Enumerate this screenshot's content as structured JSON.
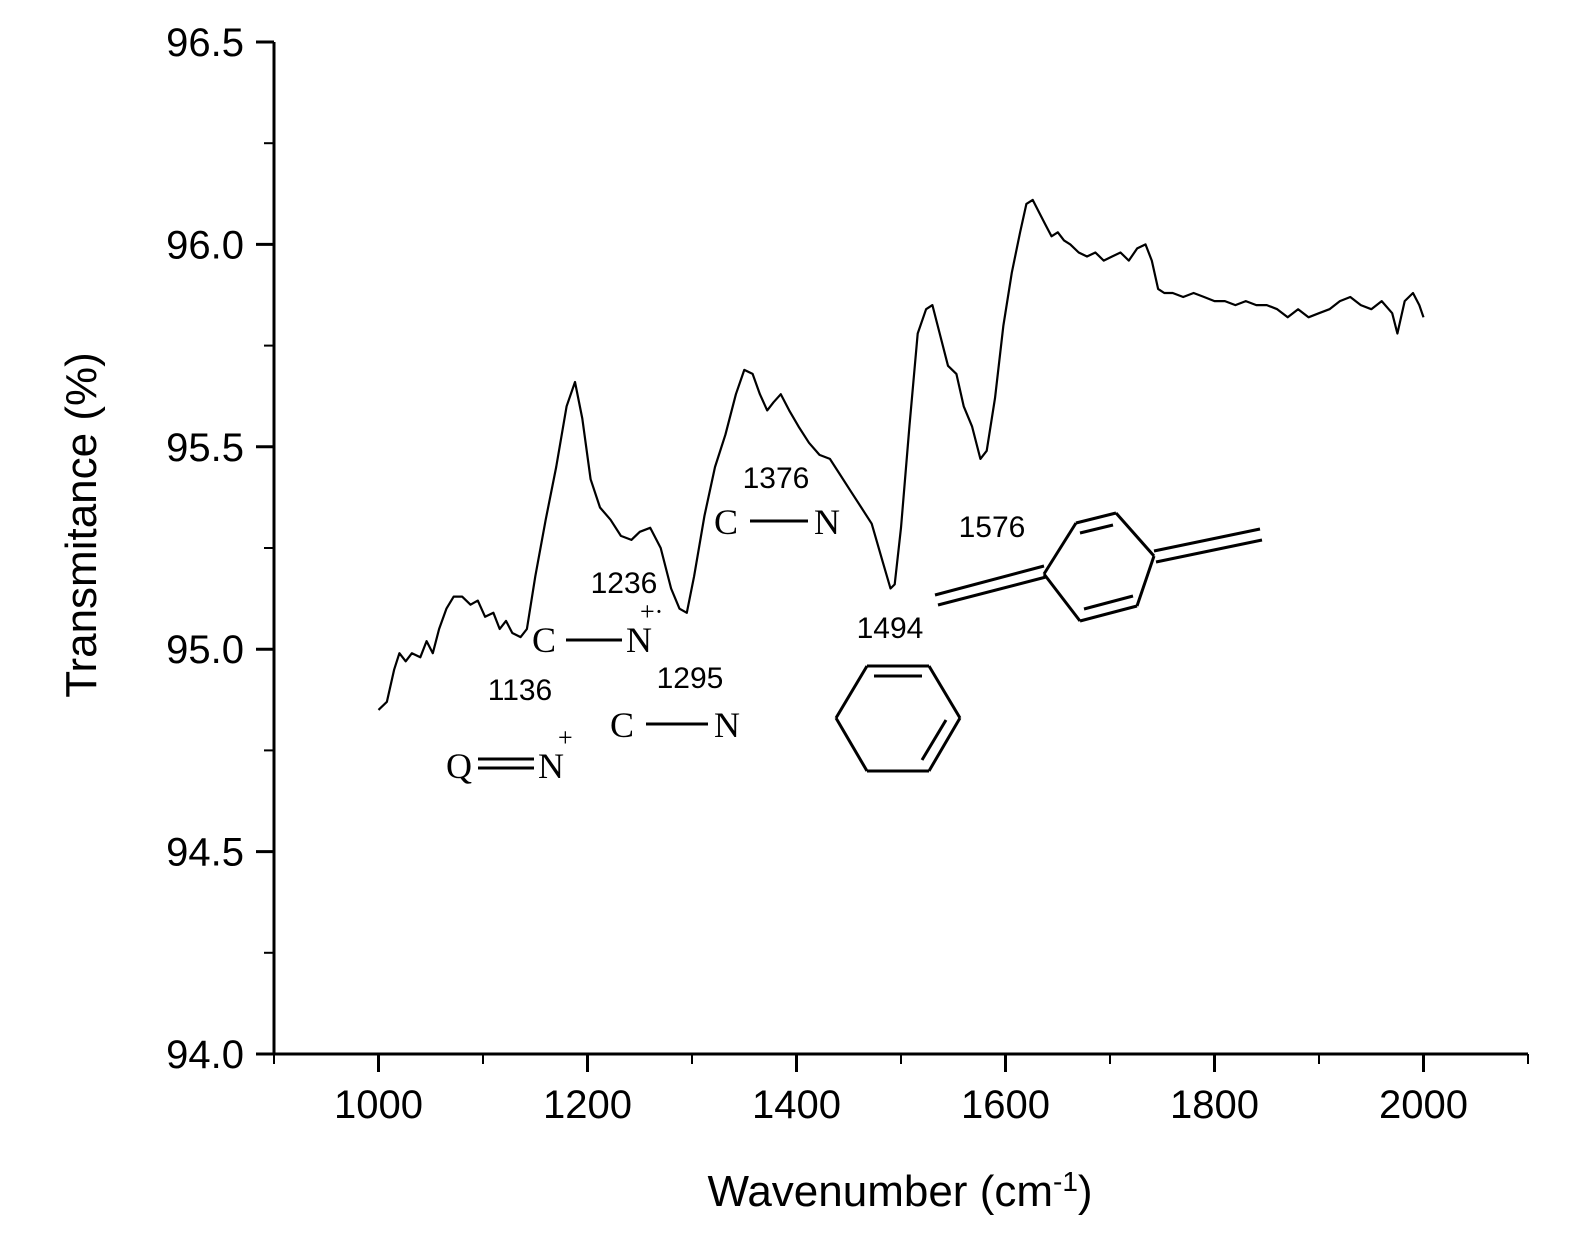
{
  "chart_data": {
    "type": "line",
    "xlabel_main": "Wavenumber (cm",
    "xlabel_sup": "-1",
    "xlabel_close": ")",
    "ylabel": "Transmitance (%)",
    "xlim": [
      900,
      2100
    ],
    "ylim": [
      94.0,
      96.5
    ],
    "x_ticks": [
      1000,
      1200,
      1400,
      1600,
      1800,
      2000
    ],
    "x_tick_labels": [
      "1000",
      "1200",
      "1400",
      "1600",
      "1800",
      "2000"
    ],
    "y_ticks": [
      94.0,
      94.5,
      95.0,
      95.5,
      96.0,
      96.5
    ],
    "y_tick_labels": [
      "94.0",
      "94.5",
      "95.0",
      "95.5",
      "96.0",
      "96.5"
    ],
    "grid": false,
    "series": [
      {
        "points": [
          [
            1000,
            94.85
          ],
          [
            1008,
            94.87
          ],
          [
            1015,
            94.95
          ],
          [
            1020,
            94.99
          ],
          [
            1026,
            94.97
          ],
          [
            1032,
            94.99
          ],
          [
            1040,
            94.98
          ],
          [
            1046,
            95.02
          ],
          [
            1052,
            94.99
          ],
          [
            1058,
            95.05
          ],
          [
            1065,
            95.1
          ],
          [
            1072,
            95.13
          ],
          [
            1080,
            95.13
          ],
          [
            1088,
            95.11
          ],
          [
            1095,
            95.12
          ],
          [
            1102,
            95.08
          ],
          [
            1110,
            95.09
          ],
          [
            1116,
            95.05
          ],
          [
            1122,
            95.07
          ],
          [
            1128,
            95.04
          ],
          [
            1136,
            95.03
          ],
          [
            1142,
            95.05
          ],
          [
            1150,
            95.18
          ],
          [
            1160,
            95.32
          ],
          [
            1170,
            95.45
          ],
          [
            1180,
            95.6
          ],
          [
            1188,
            95.66
          ],
          [
            1195,
            95.57
          ],
          [
            1203,
            95.42
          ],
          [
            1212,
            95.35
          ],
          [
            1222,
            95.32
          ],
          [
            1232,
            95.28
          ],
          [
            1242,
            95.27
          ],
          [
            1250,
            95.29
          ],
          [
            1260,
            95.3
          ],
          [
            1270,
            95.25
          ],
          [
            1280,
            95.15
          ],
          [
            1288,
            95.1
          ],
          [
            1295,
            95.09
          ],
          [
            1302,
            95.18
          ],
          [
            1312,
            95.33
          ],
          [
            1322,
            95.45
          ],
          [
            1332,
            95.53
          ],
          [
            1342,
            95.63
          ],
          [
            1350,
            95.69
          ],
          [
            1358,
            95.68
          ],
          [
            1365,
            95.63
          ],
          [
            1372,
            95.59
          ],
          [
            1378,
            95.61
          ],
          [
            1385,
            95.63
          ],
          [
            1393,
            95.59
          ],
          [
            1402,
            95.55
          ],
          [
            1412,
            95.51
          ],
          [
            1422,
            95.48
          ],
          [
            1432,
            95.47
          ],
          [
            1442,
            95.43
          ],
          [
            1452,
            95.39
          ],
          [
            1462,
            95.35
          ],
          [
            1472,
            95.31
          ],
          [
            1482,
            95.22
          ],
          [
            1490,
            95.15
          ],
          [
            1494,
            95.16
          ],
          [
            1500,
            95.3
          ],
          [
            1508,
            95.55
          ],
          [
            1516,
            95.78
          ],
          [
            1524,
            95.84
          ],
          [
            1530,
            95.85
          ],
          [
            1537,
            95.78
          ],
          [
            1545,
            95.7
          ],
          [
            1553,
            95.68
          ],
          [
            1560,
            95.6
          ],
          [
            1568,
            95.55
          ],
          [
            1576,
            95.47
          ],
          [
            1582,
            95.49
          ],
          [
            1590,
            95.62
          ],
          [
            1598,
            95.8
          ],
          [
            1606,
            95.93
          ],
          [
            1614,
            96.03
          ],
          [
            1620,
            96.1
          ],
          [
            1626,
            96.11
          ],
          [
            1632,
            96.08
          ],
          [
            1638,
            96.05
          ],
          [
            1644,
            96.02
          ],
          [
            1650,
            96.03
          ],
          [
            1656,
            96.01
          ],
          [
            1662,
            96.0
          ],
          [
            1670,
            95.98
          ],
          [
            1678,
            95.97
          ],
          [
            1686,
            95.98
          ],
          [
            1694,
            95.96
          ],
          [
            1702,
            95.97
          ],
          [
            1710,
            95.98
          ],
          [
            1718,
            95.96
          ],
          [
            1726,
            95.99
          ],
          [
            1734,
            96.0
          ],
          [
            1740,
            95.96
          ],
          [
            1746,
            95.89
          ],
          [
            1752,
            95.88
          ],
          [
            1760,
            95.88
          ],
          [
            1770,
            95.87
          ],
          [
            1780,
            95.88
          ],
          [
            1790,
            95.87
          ],
          [
            1800,
            95.86
          ],
          [
            1810,
            95.86
          ],
          [
            1820,
            95.85
          ],
          [
            1830,
            95.86
          ],
          [
            1840,
            95.85
          ],
          [
            1850,
            95.85
          ],
          [
            1860,
            95.84
          ],
          [
            1870,
            95.82
          ],
          [
            1880,
            95.84
          ],
          [
            1890,
            95.82
          ],
          [
            1900,
            95.83
          ],
          [
            1910,
            95.84
          ],
          [
            1920,
            95.86
          ],
          [
            1930,
            95.87
          ],
          [
            1940,
            95.85
          ],
          [
            1950,
            95.84
          ],
          [
            1960,
            95.86
          ],
          [
            1970,
            95.83
          ],
          [
            1975,
            95.78
          ],
          [
            1982,
            95.86
          ],
          [
            1990,
            95.88
          ],
          [
            1996,
            95.85
          ],
          [
            2000,
            95.82
          ]
        ]
      }
    ],
    "annotations": [
      {
        "label": "1136",
        "x": 1136
      },
      {
        "label": "1236",
        "x": 1236
      },
      {
        "label": "1295",
        "x": 1295
      },
      {
        "label": "1376",
        "x": 1376
      },
      {
        "label": "1494",
        "x": 1494
      },
      {
        "label": "1576",
        "x": 1576
      }
    ],
    "structures": {
      "qn_q": "Q",
      "qn_n": "N",
      "qn_charge": "+",
      "cn_radical_c": "C",
      "cn_radical_n": "N",
      "cn_radical_charge": "+·",
      "cn_1295_c": "C",
      "cn_1295_n": "N",
      "cn_1376_c": "C",
      "cn_1376_n": "N",
      "benzenoid": "benzene-ring",
      "quinoid": "quinoid-ring"
    }
  }
}
